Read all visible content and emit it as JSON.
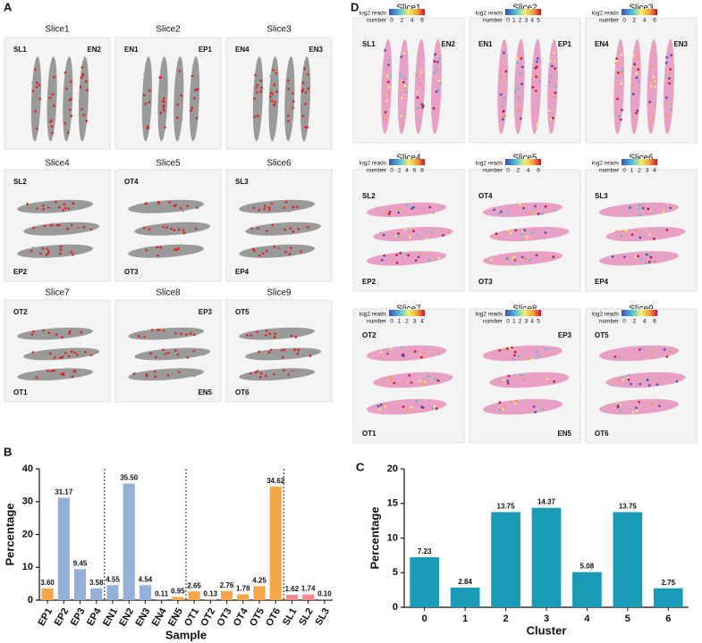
{
  "panels": {
    "A": {
      "label": "A",
      "slices": [
        {
          "title": "Slice1",
          "labels": [
            "SL1",
            "EN2"
          ]
        },
        {
          "title": "Slice2",
          "labels": [
            "EN1",
            "EP1"
          ]
        },
        {
          "title": "Slice3",
          "labels": [
            "EN4",
            "EN3"
          ]
        },
        {
          "title": "Slice4",
          "labels": [
            "SL2",
            "EP2"
          ]
        },
        {
          "title": "Slice5",
          "labels": [
            "OT4",
            "OT3"
          ]
        },
        {
          "title": "Slice6",
          "labels": [
            "SL3",
            "EP4"
          ]
        },
        {
          "title": "Slice7",
          "labels": [
            "OT2",
            "OT1"
          ]
        },
        {
          "title": "Slice8",
          "labels": [
            "EP3",
            "EN5"
          ]
        },
        {
          "title": "Slice9",
          "labels": [
            "OT5",
            "OT6"
          ]
        }
      ]
    },
    "D": {
      "label": "D",
      "colorbar_label": [
        "log2 reads",
        "number"
      ],
      "slices": [
        {
          "title": "Slice1",
          "labels": [
            "SL1",
            "EN2"
          ],
          "ticks": [
            0,
            2,
            4,
            6
          ]
        },
        {
          "title": "Slice2",
          "labels": [
            "EN1",
            "EP1"
          ],
          "ticks": [
            0,
            1,
            2,
            3,
            4,
            5
          ]
        },
        {
          "title": "Slice3",
          "labels": [
            "EN4",
            "EN3"
          ],
          "ticks": [
            0,
            2,
            4,
            6
          ]
        },
        {
          "title": "Slice4",
          "labels": [
            "SL2",
            "EP2"
          ],
          "ticks": [
            0,
            2,
            4,
            6,
            8
          ]
        },
        {
          "title": "Slice5",
          "labels": [
            "OT4",
            "OT3"
          ],
          "ticks": [
            0,
            2,
            4,
            6
          ]
        },
        {
          "title": "Slice6",
          "labels": [
            "SL3",
            "EP4"
          ],
          "ticks": [
            0,
            1,
            2,
            3,
            4
          ]
        },
        {
          "title": "Slice7",
          "labels": [
            "OT2",
            "OT1"
          ],
          "ticks": [
            0,
            1,
            2,
            3,
            4
          ]
        },
        {
          "title": "Slice8",
          "labels": [
            "EP3",
            "EN5"
          ],
          "ticks": [
            0,
            1,
            2,
            3,
            4,
            5
          ]
        },
        {
          "title": "Slice9",
          "labels": [
            "OT5",
            "OT6"
          ],
          "ticks": [
            0,
            2,
            4,
            6
          ]
        }
      ]
    }
  },
  "chart_data": [
    {
      "type": "bar",
      "panel": "B",
      "xlabel": "Sample",
      "ylabel": "Percentage",
      "categories": [
        "EP1",
        "EP2",
        "EP3",
        "EP4",
        "EN1",
        "EN2",
        "EN3",
        "EN4",
        "EN5",
        "OT1",
        "OT2",
        "OT3",
        "OT4",
        "OT5",
        "OT6",
        "SL1",
        "SL2",
        "SL3"
      ],
      "values": [
        3.6,
        31.17,
        9.45,
        3.58,
        4.55,
        35.5,
        4.54,
        0.11,
        0.95,
        2.65,
        0.13,
        2.76,
        1.78,
        4.25,
        34.62,
        1.62,
        1.74,
        0.1
      ],
      "value_labels": [
        "3.60",
        "31.17",
        "9.45",
        "3.58",
        "4.55",
        "35.50",
        "4.54",
        "0.11",
        "0.95",
        "2.65",
        "0.13",
        "2.76",
        "1.78",
        "4.25",
        "34.62",
        "1.62",
        "1.74",
        "0.10"
      ],
      "colors": [
        "#f7a54a",
        "#95b0d8",
        "#95b0d8",
        "#95b0d8",
        "#95b0d8",
        "#95b0d8",
        "#95b0d8",
        "#95b0d8",
        "#f7a54a",
        "#f7a54a",
        "#f7a54a",
        "#f7a54a",
        "#f7a54a",
        "#f7a54a",
        "#f7a54a",
        "#f08a8c",
        "#f08a8c",
        "#f08a8c"
      ],
      "ylim": [
        0,
        40
      ],
      "yticks": [
        0,
        10,
        20,
        30,
        40
      ]
    },
    {
      "type": "bar",
      "panel": "C",
      "xlabel": "Cluster",
      "ylabel": "Percentage",
      "categories": [
        "0",
        "1",
        "2",
        "3",
        "4",
        "5",
        "6"
      ],
      "values": [
        7.23,
        2.84,
        13.75,
        14.37,
        5.08,
        13.75,
        2.75
      ],
      "color": "#1a9bb5",
      "ylim": [
        0,
        20
      ],
      "yticks": [
        0,
        5,
        10,
        15,
        20
      ]
    }
  ]
}
